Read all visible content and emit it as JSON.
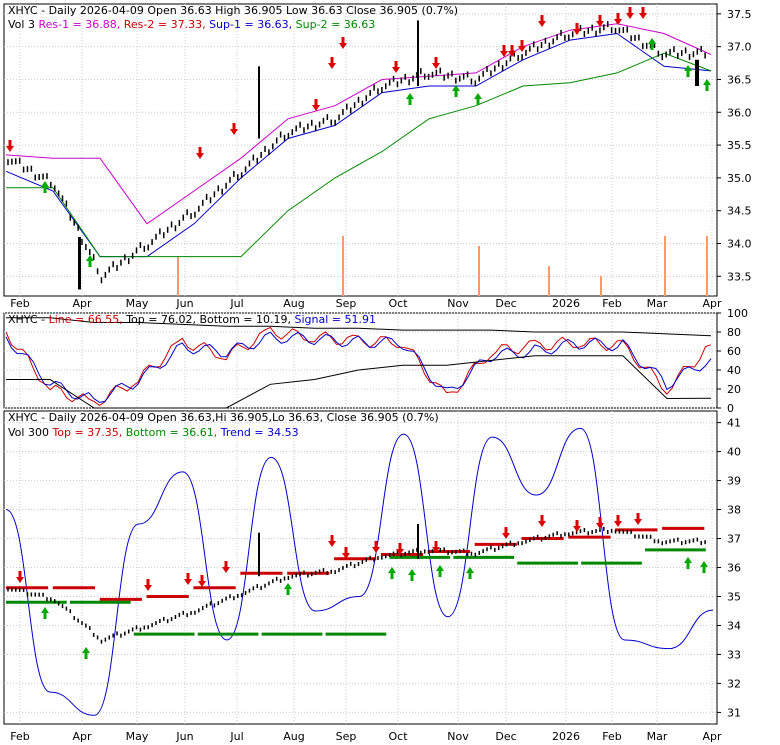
{
  "symbol": "XHYC",
  "panel1": {
    "header_line1_parts": [
      {
        "text": "XHYC - Daily 2026-04-09 Open 36.63  High 36.905  Low 36.63  Close 36.905 (0.7%)",
        "color": "#000000"
      }
    ],
    "header_line2_parts": [
      {
        "text": "Vol 3",
        "color": "#000000"
      },
      {
        "text": "Res-1 = 36.88,",
        "color": "#cc00cc"
      },
      {
        "text": "Res-2 = 37.33,",
        "color": "#cc0000"
      },
      {
        "text": "Sup-1 = 36.63,",
        "color": "#0000cc"
      },
      {
        "text": "Sup-2 = 36.63",
        "color": "#008800"
      }
    ],
    "y_ticks": [
      "37.5",
      "37.0",
      "36.5",
      "36.0",
      "35.5",
      "35.0",
      "34.5",
      "34.0",
      "33.5"
    ],
    "y_range": [
      33.2,
      37.65
    ]
  },
  "panel2": {
    "header_parts": [
      {
        "text": "XHYC - ",
        "color": "#000000"
      },
      {
        "text": "Line = 66.55,",
        "color": "#cc0000"
      },
      {
        "text": "Top = 76.02,",
        "color": "#000000"
      },
      {
        "text": "Bottom = 10.19,",
        "color": "#000000"
      },
      {
        "text": "Signal = 51.91",
        "color": "#0000cc"
      }
    ],
    "y_ticks": [
      "100",
      "80",
      "60",
      "40",
      "20",
      "0"
    ],
    "y_range": [
      0,
      100
    ]
  },
  "panel3": {
    "header_line1_parts": [
      {
        "text": "XHYC - Daily 2026-04-09 Open 36.63,Hi 36.905,Lo 36.63, Close 36.905 (0.7%)",
        "color": "#000000"
      }
    ],
    "header_line2_parts": [
      {
        "text": "Vol 300",
        "color": "#000000"
      },
      {
        "text": "Top = 37.35,",
        "color": "#cc0000"
      },
      {
        "text": "Bottom = 36.61,",
        "color": "#008800"
      },
      {
        "text": "Trend = 34.53",
        "color": "#0000cc"
      }
    ],
    "y_ticks": [
      "41",
      "40",
      "39",
      "38",
      "37",
      "36",
      "35",
      "34",
      "33",
      "32",
      "31"
    ],
    "y_range": [
      30.6,
      41.4
    ]
  },
  "x_labels": [
    "Feb",
    "Apr",
    "May",
    "Jun",
    "Jul",
    "Aug",
    "Sep",
    "Oct",
    "Nov",
    "Dec",
    "2026",
    "Feb",
    "Mar",
    "Apr"
  ],
  "colors": {
    "background": "#ffffff",
    "grid": "#cccccc",
    "price": "#000000",
    "res1": "#cc00cc",
    "res2_top": "#cc0000",
    "sup1_trend": "#0000cc",
    "sup2_bottom": "#008800",
    "volume": "#ff9966",
    "up_arrow": "#00aa00",
    "down_arrow": "#dd0000"
  },
  "chart_data": [
    {
      "type": "line",
      "title": "XHYC - Daily 2026-04-09 Open 36.63  High 36.905  Low 36.63  Close 36.905 (0.7%)",
      "x": [
        "Feb",
        "Mar",
        "Apr",
        "Apr",
        "May",
        "Jun",
        "Jul",
        "Aug",
        "Sep",
        "Oct",
        "Nov",
        "Dec",
        "2026",
        "Feb",
        "Mar",
        "Apr"
      ],
      "series": [
        {
          "name": "Close",
          "values": [
            35.3,
            34.9,
            33.5,
            34.0,
            34.5,
            35.1,
            35.7,
            35.9,
            36.4,
            36.6,
            36.5,
            36.9,
            37.2,
            37.3,
            36.9,
            36.905
          ]
        },
        {
          "name": "Res-1",
          "values": [
            35.35,
            35.3,
            35.3,
            34.3,
            34.8,
            35.3,
            35.9,
            36.1,
            36.5,
            36.55,
            36.6,
            37.0,
            37.25,
            37.35,
            37.2,
            36.88
          ]
        },
        {
          "name": "Sup-1",
          "values": [
            35.1,
            34.8,
            33.8,
            33.8,
            34.3,
            35.0,
            35.6,
            35.8,
            36.3,
            36.4,
            36.4,
            36.8,
            37.1,
            37.2,
            36.7,
            36.63
          ]
        },
        {
          "name": "Sup-2",
          "values": [
            34.85,
            34.85,
            33.8,
            33.8,
            33.8,
            33.8,
            34.5,
            35.0,
            35.4,
            35.9,
            36.1,
            36.4,
            36.45,
            36.6,
            36.9,
            36.63
          ]
        }
      ],
      "ylim": [
        33.2,
        37.65
      ]
    },
    {
      "type": "line",
      "title": "XHYC - Line = 66.55, Top = 76.02, Bottom = 10.19, Signal = 51.91",
      "ylim": [
        0,
        100
      ],
      "series": [
        {
          "name": "Line",
          "values": [
            80,
            20,
            5,
            30,
            70,
            55,
            80,
            75,
            70,
            70,
            10,
            60,
            65,
            70,
            65,
            20,
            66.55
          ]
        },
        {
          "name": "Signal",
          "values": [
            75,
            25,
            8,
            28,
            65,
            58,
            75,
            72,
            70,
            68,
            15,
            55,
            60,
            68,
            66,
            25,
            51.91
          ]
        },
        {
          "name": "Top",
          "values": [
            95,
            95,
            90,
            90,
            88,
            86,
            86,
            84,
            84,
            82,
            82,
            82,
            80,
            80,
            80,
            78,
            76.02
          ]
        },
        {
          "name": "Bottom",
          "values": [
            30,
            30,
            0,
            0,
            0,
            0,
            25,
            30,
            40,
            45,
            45,
            50,
            55,
            55,
            55,
            10,
            10.19
          ]
        }
      ]
    },
    {
      "type": "line",
      "title": "XHYC - Daily 2026-04-09 Open 36.63,Hi 36.905,Lo 36.63, Close 36.905 (0.7%)",
      "ylim": [
        30.6,
        41.4
      ],
      "series": [
        {
          "name": "Trend",
          "values": [
            38,
            31.7,
            30.9,
            37.5,
            39.3,
            33.5,
            39.8,
            34.5,
            35,
            40.6,
            34.3,
            40.5,
            38.5,
            40.8,
            33.5,
            33.2,
            34.53
          ]
        },
        {
          "name": "Top",
          "values": [
            35.3,
            35.3,
            34.9,
            35.0,
            35.3,
            35.8,
            35.8,
            36.3,
            36.45,
            36.55,
            36.8,
            37.0,
            37.05,
            37.3,
            37.35
          ]
        },
        {
          "name": "Bottom",
          "values": [
            34.8,
            34.8,
            33.7,
            33.7,
            33.7,
            33.7,
            36.35,
            36.35,
            36.15,
            36.15,
            36.61
          ]
        }
      ]
    }
  ]
}
